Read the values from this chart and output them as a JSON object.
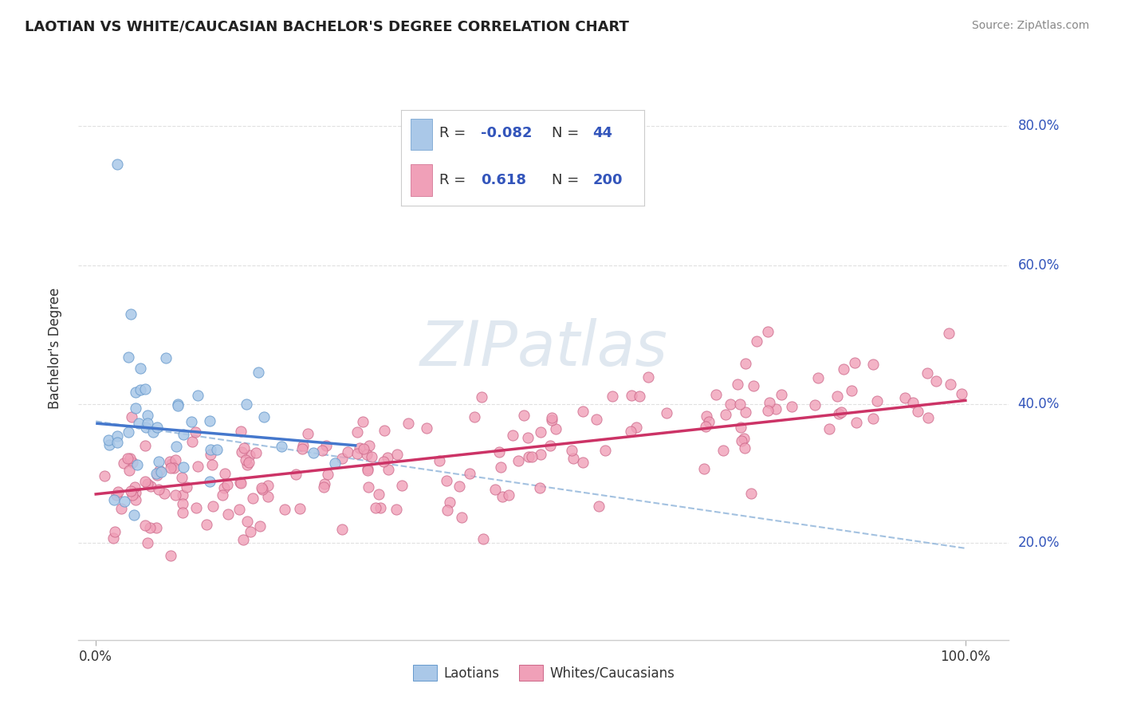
{
  "title": "LAOTIAN VS WHITE/CAUCASIAN BACHELOR'S DEGREE CORRELATION CHART",
  "source": "Source: ZipAtlas.com",
  "ylabel": "Bachelor's Degree",
  "ytick_values": [
    0.2,
    0.4,
    0.6,
    0.8
  ],
  "ytick_labels": [
    "20.0%",
    "40.0%",
    "60.0%",
    "80.0%"
  ],
  "xtick_values": [
    0.0,
    1.0
  ],
  "xtick_labels": [
    "0.0%",
    "100.0%"
  ],
  "xlim": [
    -0.02,
    1.05
  ],
  "ylim": [
    0.06,
    0.9
  ],
  "blue_color": "#aac8e8",
  "blue_edge_color": "#6699cc",
  "pink_color": "#f0a0b8",
  "pink_edge_color": "#cc6688",
  "blue_line_color": "#4477cc",
  "pink_line_color": "#cc3366",
  "gray_line_color": "#99bbdd",
  "background_color": "#ffffff",
  "grid_color": "#dddddd",
  "watermark_color": "#e8e8e8",
  "title_color": "#222222",
  "source_color": "#888888",
  "ylabel_color": "#333333",
  "ytick_label_color": "#3355bb",
  "xtick_label_color": "#333333",
  "legend_text_color": "#333333",
  "legend_value_color": "#3355bb",
  "legend_border_color": "#cccccc",
  "blue_line_x": [
    0.0,
    0.3
  ],
  "blue_line_y": [
    0.372,
    0.34
  ],
  "pink_line_x": [
    0.0,
    1.0
  ],
  "pink_line_y": [
    0.27,
    0.405
  ],
  "gray_line_x": [
    0.0,
    1.0
  ],
  "gray_line_y": [
    0.375,
    0.192
  ],
  "legend_r1": "R = ",
  "legend_v1": "-0.082",
  "legend_n1_label": "N = ",
  "legend_n1_val": "44",
  "legend_r2": "R =  ",
  "legend_v2": "0.618",
  "legend_n2_label": "N = ",
  "legend_n2_val": "200",
  "blue_label": "Laotians",
  "pink_label": "Whites/Caucasians"
}
